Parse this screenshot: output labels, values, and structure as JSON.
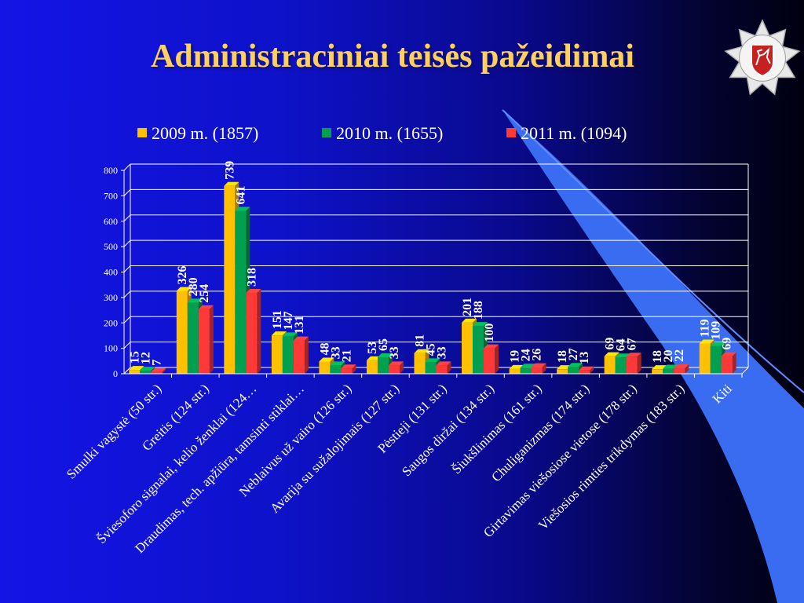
{
  "slide": {
    "title": "Administraciniai teisės pažeidimai"
  },
  "emblem": {
    "icon": "police-star-emblem-icon"
  },
  "colors": {
    "background": "#1010d0",
    "title": "#ffd060",
    "series": [
      "#ffc000",
      "#00a050",
      "#ff3838"
    ]
  },
  "chart_data": {
    "type": "bar",
    "categories": [
      "Smulki vagystė (50 str.)",
      "Greitis (124 str.)",
      "Šviesoforo signalai, kelio ženklai (124…",
      "Draudimas, tech. apžiūra, tamsinti stiklai…",
      "Neblaivus už vairo (126 str.)",
      "Avarija su sužalojimais (127 str.)",
      "Pėstieji (131 str.)",
      "Saugos diržai (134 str.)",
      "Šiukšlinimas (161 str.)",
      "Chuliganizmas (174 str.)",
      "Girtavimas viešosiose vietose (178 str.)",
      "Viešosios rimties trikdymas (183 str.)",
      "Kiti"
    ],
    "series": [
      {
        "name": "2009 m. (1857)",
        "values": [
          15,
          326,
          739,
          151,
          48,
          53,
          81,
          201,
          19,
          18,
          69,
          18,
          119
        ]
      },
      {
        "name": "2010 m. (1655)",
        "values": [
          12,
          280,
          641,
          147,
          33,
          65,
          45,
          188,
          24,
          27,
          64,
          20,
          109
        ]
      },
      {
        "name": "2011 m. (1094)",
        "values": [
          7,
          254,
          318,
          131,
          21,
          33,
          33,
          100,
          26,
          13,
          67,
          22,
          69
        ]
      }
    ],
    "yticks": [
      0,
      100,
      200,
      300,
      400,
      500,
      600,
      700,
      800
    ],
    "ylim": [
      0,
      800
    ],
    "grid": true,
    "legend": "top",
    "xlabel": "",
    "ylabel": ""
  }
}
